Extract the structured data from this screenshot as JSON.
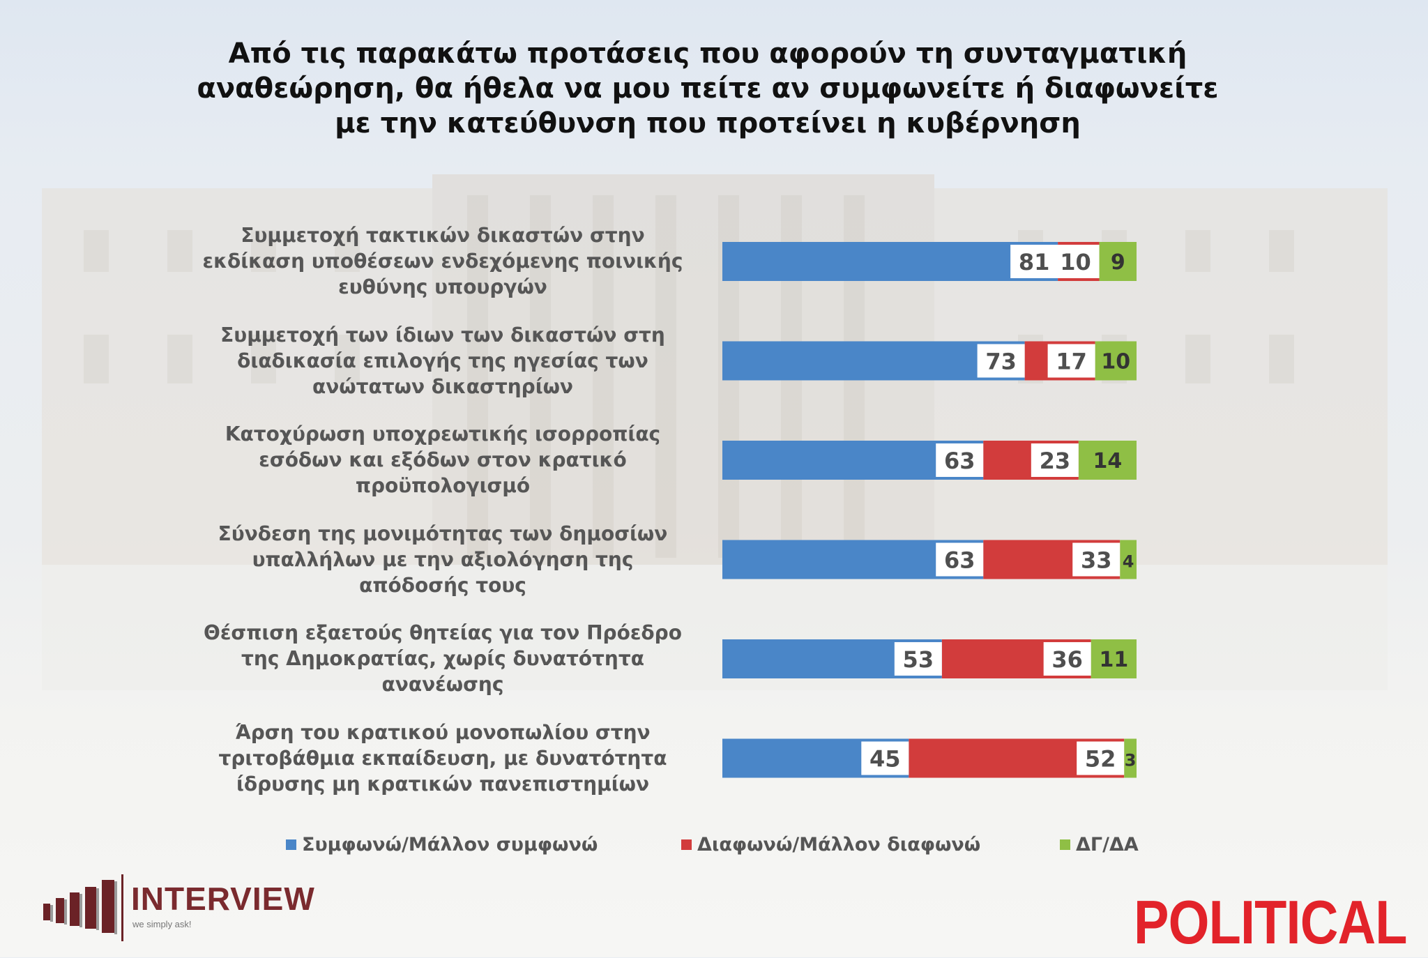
{
  "title": "Από τις παρακάτω προτάσεις που αφορούν τη συνταγματική\nαναθεώρηση, θα ήθελα να μου πείτε αν συμφωνείτε ή διαφωνείτε\nμε την κατεύθυνση που προτείνει η κυβέρνηση",
  "colors": {
    "agree": "#4a86c8",
    "disagree": "#d23c3c",
    "dk": "#8fbf45",
    "label_bg": "#ffffff"
  },
  "chart_data": {
    "type": "bar",
    "stacked": true,
    "orientation": "horizontal",
    "title": "Από τις παρακάτω προτάσεις που αφορούν τη συνταγματική αναθεώρηση, θα ήθελα να μου πείτε αν συμφωνείτε ή διαφωνείτε με την κατεύθυνση που προτείνει η κυβέρνηση",
    "categories": [
      "Συμμετοχή τακτικών δικαστών στην\nεκδίκαση υποθέσεων ενδεχόμενης ποινικής\nευθύνης υπουργών",
      "Συμμετοχή των ίδιων των δικαστών στη\nδιαδικασία επιλογής της ηγεσίας των\nανώτατων δικαστηρίων",
      "Κατοχύρωση υποχρεωτικής ισορροπίας\nεσόδων και εξόδων στον κρατικό\nπροϋπολογισμό",
      "Σύνδεση της μονιμότητας των δημοσίων\nυπαλλήλων με την αξιολόγηση της\nαπόδοσής τους",
      "Θέσπιση εξαετούς θητείας για τον Πρόεδρο\nτης Δημοκρατίας, χωρίς δυνατότητα\nανανέωσης",
      "Άρση του κρατικού μονοπωλίου στην\nτριτοβάθμια εκπαίδευση, με δυνατότητα\nίδρυσης μη κρατικών πανεπιστημίων"
    ],
    "series": [
      {
        "name": "Συμφωνώ/Μάλλον συμφωνώ",
        "values": [
          81,
          73,
          63,
          63,
          53,
          45
        ]
      },
      {
        "name": "Διαφωνώ/Μάλλον διαφωνώ",
        "values": [
          10,
          17,
          23,
          33,
          36,
          52
        ]
      },
      {
        "name": "ΔΓ/ΔΑ",
        "values": [
          9,
          10,
          14,
          4,
          11,
          3
        ]
      }
    ],
    "xlim": [
      0,
      100
    ],
    "legend": "bottom"
  },
  "legend": {
    "agree": "Συμφωνώ/Μάλλον συμφωνώ",
    "disagree": "Διαφωνώ/Μάλλον διαφωνώ",
    "dk": "ΔΓ/ΔΑ"
  },
  "logos": {
    "interview": "INTERVIEW",
    "interview_tag": "we simply ask!",
    "political": "POLITICAL"
  }
}
